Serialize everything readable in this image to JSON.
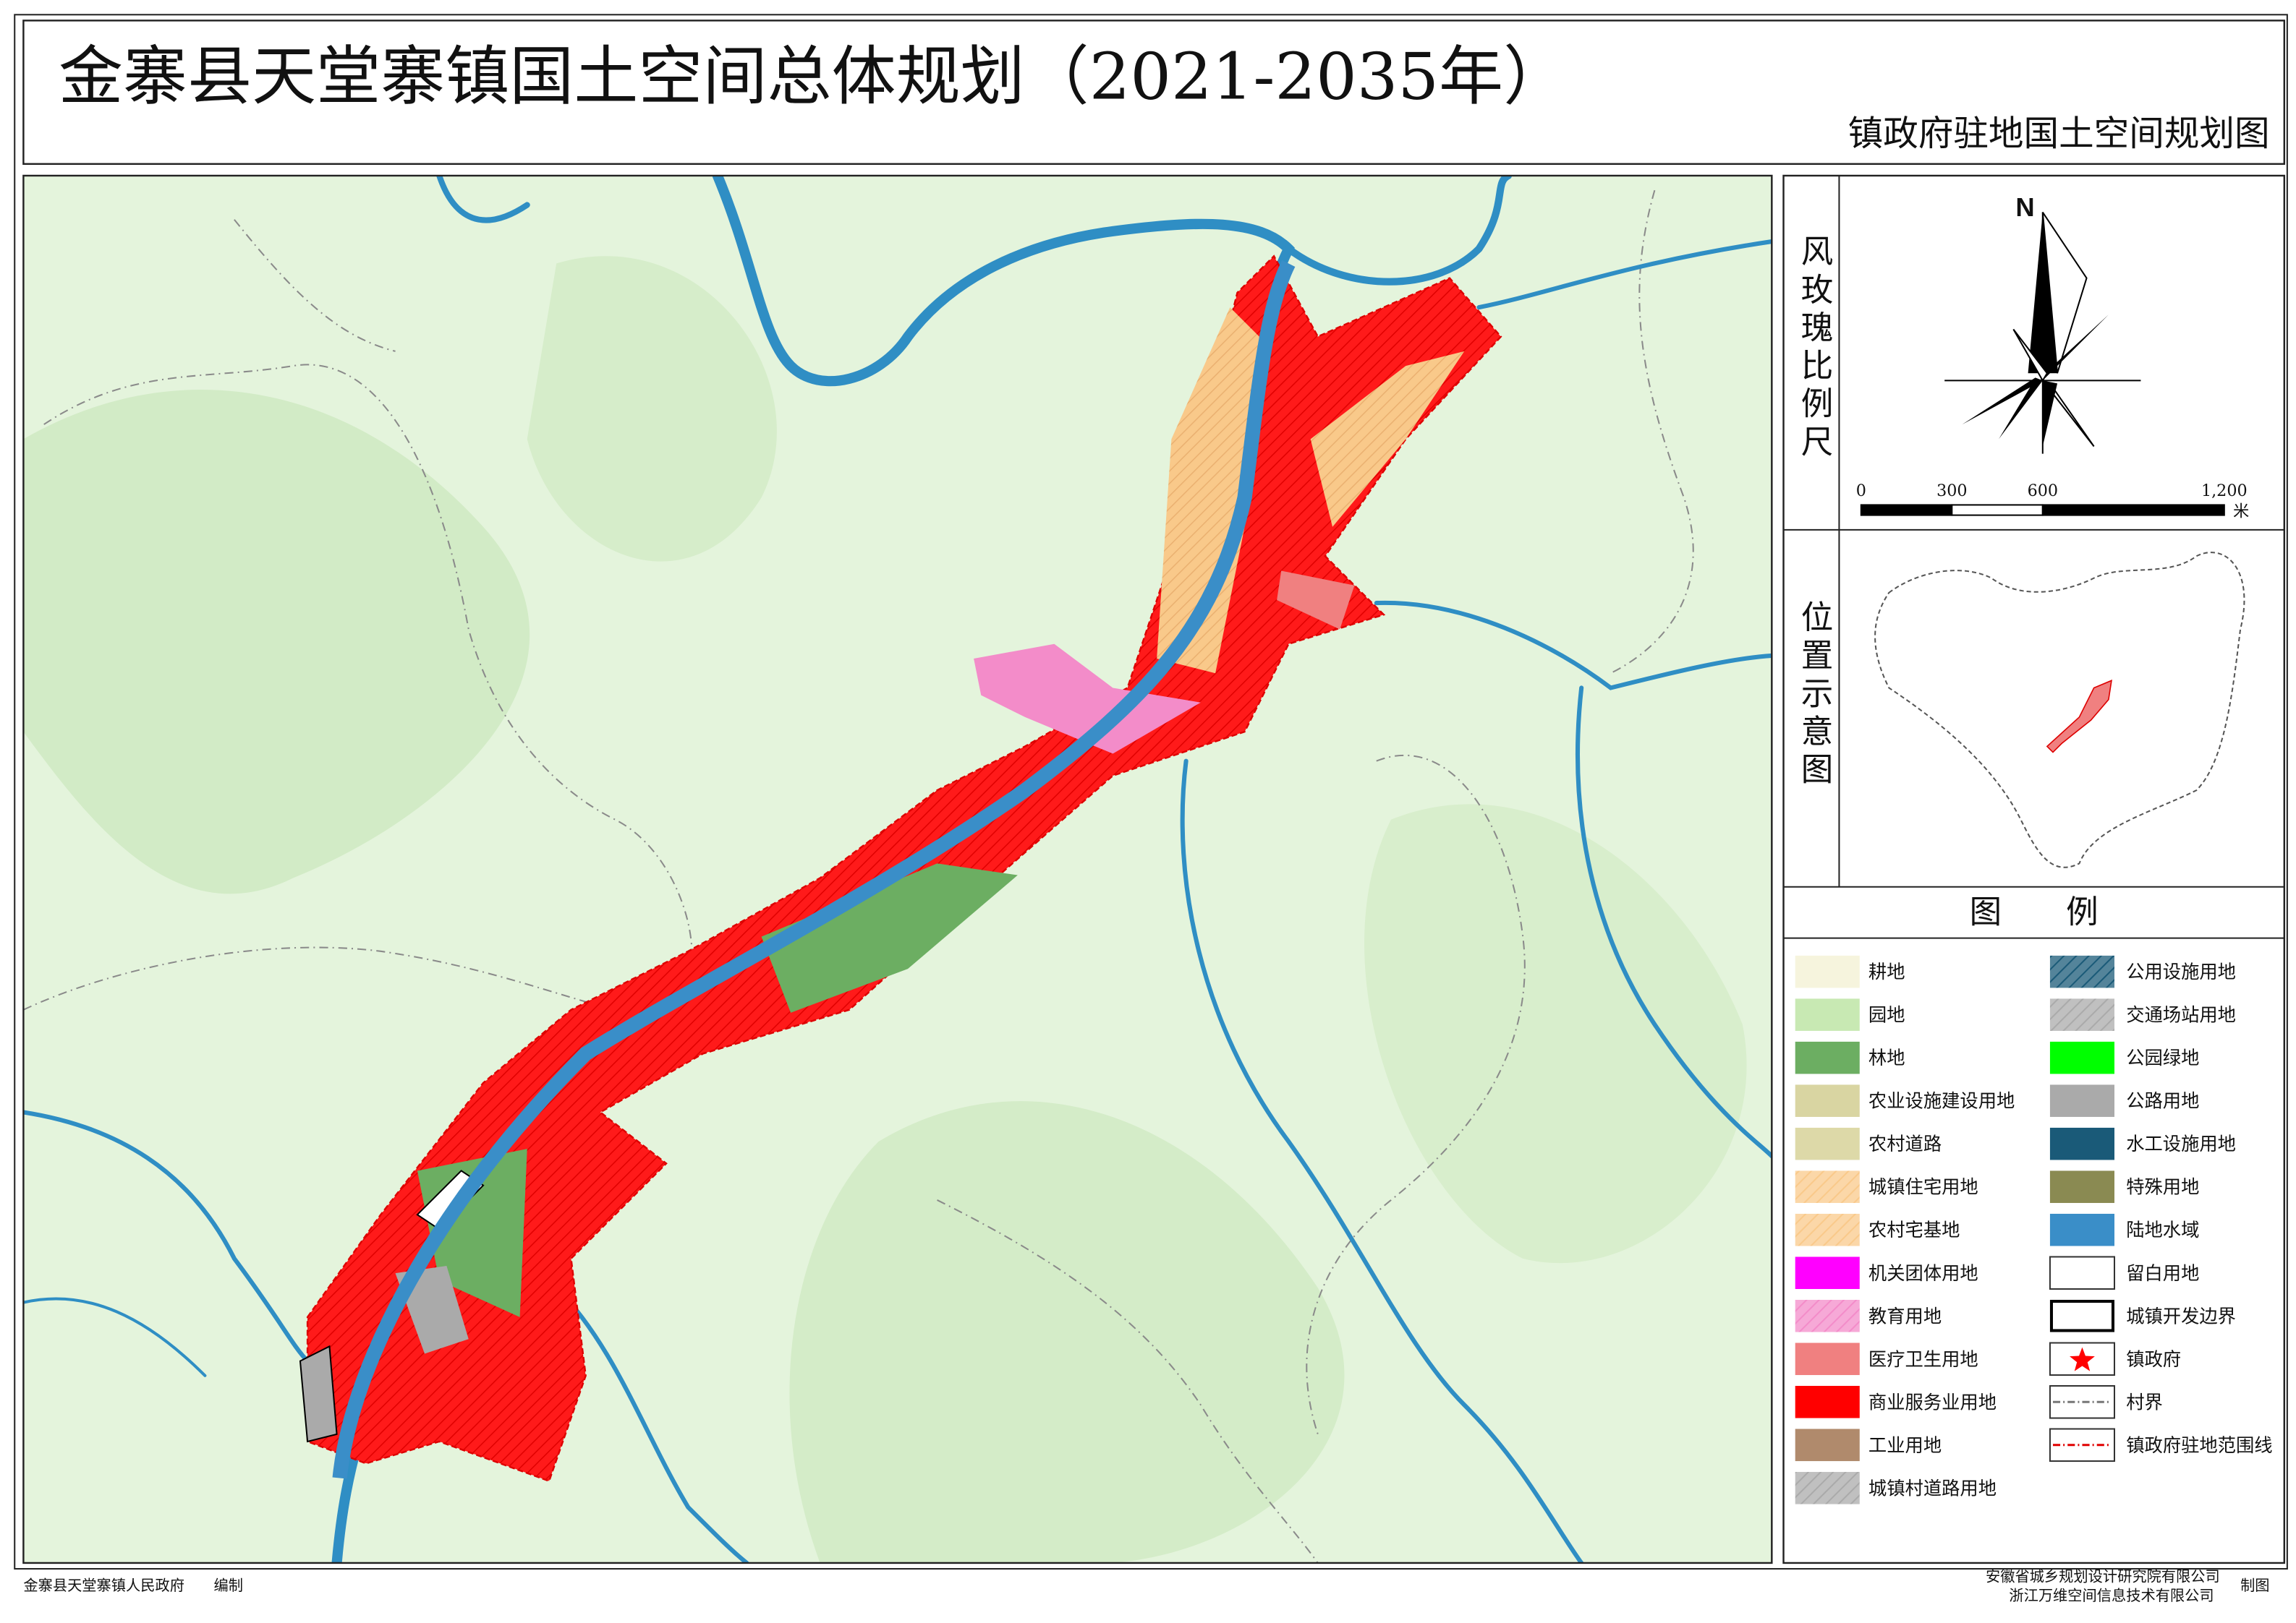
{
  "header": {
    "title": "金寨县天堂寨镇国土空间总体规划（2021-2035年）",
    "subtitle": "镇政府驻地国土空间规划图"
  },
  "side_panels": {
    "wind_rose_label": "风玫瑰比例尺",
    "location_label": "位置示意图"
  },
  "compass": {
    "north": "N"
  },
  "scale_bar": {
    "labels": [
      "0",
      "300",
      "600",
      "1,200"
    ],
    "unit": "米"
  },
  "legend": {
    "title": "图　　例",
    "left_column": [
      {
        "label": "耕地",
        "color": "#f6f4dd",
        "swatch": "fill"
      },
      {
        "label": "园地",
        "color": "#c8e9b3",
        "swatch": "fill"
      },
      {
        "label": "林地",
        "color": "#6cae62",
        "swatch": "fill"
      },
      {
        "label": "农业设施建设用地",
        "color": "#d9d5a2",
        "swatch": "fill"
      },
      {
        "label": "农村道路",
        "color": "#ddd9a8",
        "swatch": "fill"
      },
      {
        "label": "城镇住宅用地",
        "color": "#f9c98a",
        "swatch": "hatch"
      },
      {
        "label": "农村宅基地",
        "color": "#f9c98a",
        "swatch": "hatch"
      },
      {
        "label": "机关团体用地",
        "color": "#ff00ff",
        "swatch": "fill"
      },
      {
        "label": "教育用地",
        "color": "#f38cc9",
        "swatch": "hatch"
      },
      {
        "label": "医疗卫生用地",
        "color": "#f08080",
        "swatch": "fill"
      },
      {
        "label": "商业服务业用地",
        "color": "#ff0000",
        "swatch": "fill"
      },
      {
        "label": "工业用地",
        "color": "#b08a6c",
        "swatch": "fill"
      },
      {
        "label": "城镇村道路用地",
        "color": "#aaaaaa",
        "swatch": "hatch"
      }
    ],
    "right_column": [
      {
        "label": "公用设施用地",
        "color": "#1a5a78",
        "swatch": "hatch"
      },
      {
        "label": "交通场站用地",
        "color": "#aaaaaa",
        "swatch": "hatch"
      },
      {
        "label": "公园绿地",
        "color": "#00ff00",
        "swatch": "fill"
      },
      {
        "label": "公路用地",
        "color": "#aaaaaa",
        "swatch": "fill"
      },
      {
        "label": "水工设施用地",
        "color": "#1a5a78",
        "swatch": "fill"
      },
      {
        "label": "特殊用地",
        "color": "#8a8a52",
        "swatch": "fill"
      },
      {
        "label": "陆地水域",
        "color": "#3a8ec8",
        "swatch": "fill"
      },
      {
        "label": "留白用地",
        "color": "#ffffff",
        "swatch": "outline"
      },
      {
        "label": "城镇开发边界",
        "color": "#000000",
        "swatch": "boundary"
      },
      {
        "label": "镇政府",
        "color": "#ff0000",
        "swatch": "star"
      },
      {
        "label": "村界",
        "color": "#777777",
        "swatch": "dash"
      },
      {
        "label": "镇政府驻地范围线",
        "color": "#e00000",
        "swatch": "dash"
      }
    ]
  },
  "footer": {
    "left": "金寨县天堂寨镇人民政府",
    "left_suffix": "编制",
    "right": [
      "安徽省城乡规划设计研究院有限公司",
      "浙江万维空间信息技术有限公司"
    ],
    "right_suffix": "制图"
  }
}
